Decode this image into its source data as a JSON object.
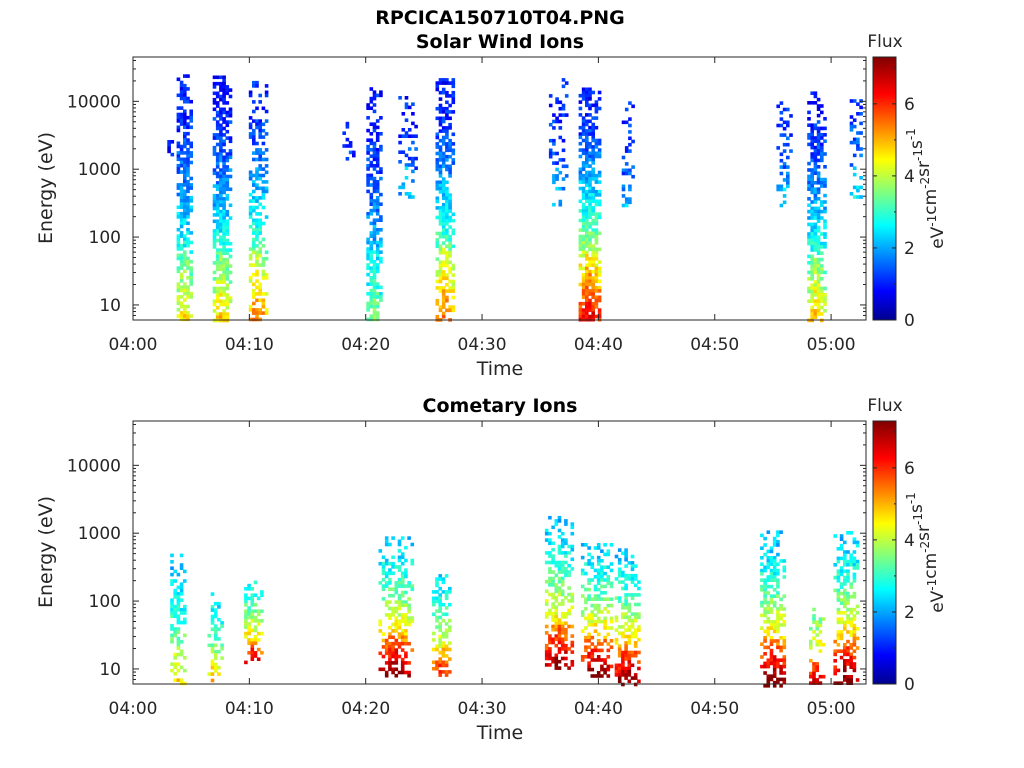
{
  "figure": {
    "title": "RPCICA150710T04.PNG"
  },
  "chart_data": [
    {
      "type": "heatmap",
      "title": "Solar Wind Ions",
      "xlabel": "Time",
      "ylabel": "Energy (eV)",
      "y_scale": "log",
      "x_ticks": [
        "04:00",
        "04:10",
        "04:20",
        "04:30",
        "04:40",
        "04:50",
        "05:00"
      ],
      "y_ticks": [
        "10",
        "100",
        "1000",
        "10000"
      ],
      "xlim": [
        "04:00",
        "05:03"
      ],
      "ylim": [
        6,
        45000
      ],
      "colorbar": {
        "label": "Flux",
        "unit_label": "eV^-1 cm^-2 sr^-1 s^-1",
        "ticks": [
          "0",
          "2",
          "4",
          "6"
        ],
        "range": [
          0,
          7.3
        ],
        "colormap": "jet"
      },
      "bursts": [
        {
          "t": 3.2,
          "w": 0.5,
          "emin": 1500,
          "emax": 3000,
          "fhi": 1.0,
          "flo": 0.8,
          "density": 0.5
        },
        {
          "t": 4.4,
          "w": 1.3,
          "emin": 6,
          "emax": 25000,
          "fhi": 1.0,
          "flo": 4.3,
          "density": 0.85
        },
        {
          "t": 7.6,
          "w": 1.5,
          "emin": 6,
          "emax": 24000,
          "fhi": 1.0,
          "flo": 4.5,
          "density": 0.85
        },
        {
          "t": 10.7,
          "w": 1.5,
          "emin": 6,
          "emax": 20000,
          "fhi": 1.1,
          "flo": 5.2,
          "density": 0.6
        },
        {
          "t": 18.5,
          "w": 1.0,
          "emin": 1500,
          "emax": 5000,
          "fhi": 1.2,
          "flo": 1.0,
          "density": 0.3
        },
        {
          "t": 20.7,
          "w": 1.3,
          "emin": 6,
          "emax": 18000,
          "fhi": 1.0,
          "flo": 3.3,
          "density": 0.7
        },
        {
          "t": 23.5,
          "w": 1.4,
          "emin": 400,
          "emax": 12000,
          "fhi": 1.1,
          "flo": 2.0,
          "density": 0.35
        },
        {
          "t": 26.8,
          "w": 1.6,
          "emin": 6,
          "emax": 22000,
          "fhi": 1.0,
          "flo": 5.3,
          "density": 0.75
        },
        {
          "t": 36.5,
          "w": 1.5,
          "emin": 300,
          "emax": 22000,
          "fhi": 1.1,
          "flo": 1.8,
          "density": 0.35
        },
        {
          "t": 39.2,
          "w": 1.8,
          "emin": 6,
          "emax": 16000,
          "fhi": 1.0,
          "flo": 6.3,
          "density": 0.85
        },
        {
          "t": 42.5,
          "w": 1.0,
          "emin": 300,
          "emax": 10000,
          "fhi": 1.2,
          "flo": 1.8,
          "density": 0.35
        },
        {
          "t": 55.9,
          "w": 1.2,
          "emin": 300,
          "emax": 10000,
          "fhi": 1.3,
          "flo": 2.0,
          "density": 0.35
        },
        {
          "t": 58.7,
          "w": 1.5,
          "emin": 6,
          "emax": 14000,
          "fhi": 1.0,
          "flo": 4.6,
          "density": 0.8
        },
        {
          "t": 62.1,
          "w": 1.0,
          "emin": 400,
          "emax": 12000,
          "fhi": 1.3,
          "flo": 2.3,
          "density": 0.4
        }
      ]
    },
    {
      "type": "heatmap",
      "title": "Cometary Ions",
      "xlabel": "Time",
      "ylabel": "Energy (eV)",
      "y_scale": "log",
      "x_ticks": [
        "04:00",
        "04:10",
        "04:20",
        "04:30",
        "04:40",
        "04:50",
        "05:00"
      ],
      "y_ticks": [
        "10",
        "100",
        "1000",
        "10000"
      ],
      "xlim": [
        "04:00",
        "05:03"
      ],
      "ylim": [
        6,
        45000
      ],
      "colorbar": {
        "label": "Flux",
        "unit_label": "eV^-1 cm^-2 sr^-1 s^-1",
        "ticks": [
          "0",
          "2",
          "4",
          "6"
        ],
        "range": [
          0,
          7.3
        ],
        "colormap": "jet"
      },
      "bursts": [
        {
          "t": 3.8,
          "w": 1.2,
          "emin": 6,
          "emax": 500,
          "fhi": 2.3,
          "flo": 4.6,
          "density": 0.45
        },
        {
          "t": 7.0,
          "w": 1.2,
          "emin": 6,
          "emax": 150,
          "fhi": 2.6,
          "flo": 4.8,
          "density": 0.45
        },
        {
          "t": 10.3,
          "w": 1.5,
          "emin": 12,
          "emax": 200,
          "fhi": 2.8,
          "flo": 6.5,
          "density": 0.6
        },
        {
          "t": 22.5,
          "w": 2.8,
          "emin": 8,
          "emax": 900,
          "fhi": 2.4,
          "flo": 7.0,
          "density": 0.6
        },
        {
          "t": 26.5,
          "w": 1.6,
          "emin": 8,
          "emax": 250,
          "fhi": 2.6,
          "flo": 6.0,
          "density": 0.55
        },
        {
          "t": 36.6,
          "w": 2.4,
          "emin": 10,
          "emax": 1800,
          "fhi": 2.3,
          "flo": 7.0,
          "density": 0.6
        },
        {
          "t": 39.8,
          "w": 2.6,
          "emin": 8,
          "emax": 800,
          "fhi": 2.4,
          "flo": 7.0,
          "density": 0.6
        },
        {
          "t": 42.5,
          "w": 2.2,
          "emin": 6,
          "emax": 600,
          "fhi": 2.4,
          "flo": 7.1,
          "density": 0.6
        },
        {
          "t": 55.0,
          "w": 2.2,
          "emin": 6,
          "emax": 1100,
          "fhi": 2.3,
          "flo": 7.1,
          "density": 0.6
        },
        {
          "t": 58.7,
          "w": 1.2,
          "emin": 6,
          "emax": 80,
          "fhi": 3.5,
          "flo": 6.5,
          "density": 0.55
        },
        {
          "t": 61.3,
          "w": 2.2,
          "emin": 6,
          "emax": 1200,
          "fhi": 2.3,
          "flo": 7.1,
          "density": 0.6
        }
      ]
    }
  ]
}
